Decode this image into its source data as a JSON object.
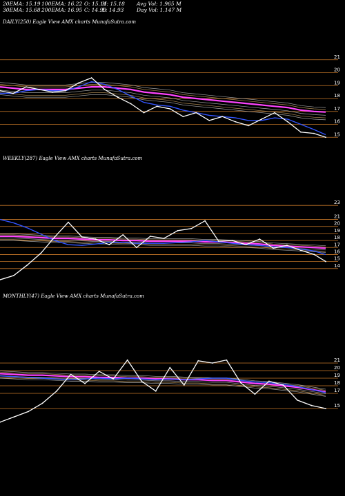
{
  "header": {
    "ema20": "20EMA: 15.19",
    "ema100": "100EMA: 16.22",
    "open": "O: 15.11",
    "high": "H: 15.18",
    "avgvol": "Avg Vol: 1.965 M",
    "ema30": "30EMA: 15.68",
    "ema200": "200EMA: 16.95",
    "close": "C: 14.99",
    "low": "L: 14.93",
    "dayvol": "Day Vol: 1.147 M"
  },
  "colors": {
    "price": "#ffffff",
    "ema_short": "#3355ff",
    "ema_long": "#ff44ff",
    "ma_gold": "#c8a060",
    "ma_grey": "#bbbbbb",
    "grid": "#c87828"
  },
  "chart_data": [
    {
      "type": "line",
      "title": "DAILY(250) Eagle  View  AMX  charts MunafaSutra.com",
      "ylim": [
        14,
        22
      ],
      "yticks": [
        "15",
        "16",
        "17",
        "18",
        "19",
        "20",
        "21"
      ],
      "x": [
        0,
        10,
        20,
        30,
        40,
        50,
        60,
        70,
        80,
        90,
        100,
        110,
        120,
        130,
        140,
        150,
        160,
        170,
        180,
        190,
        200,
        210,
        220,
        230,
        240,
        249
      ],
      "series": [
        {
          "role": "price",
          "values": [
            18.6,
            18.4,
            18.9,
            18.7,
            18.5,
            18.6,
            19.2,
            19.6,
            18.7,
            18.1,
            17.6,
            16.9,
            17.4,
            17.2,
            16.6,
            16.9,
            16.3,
            16.6,
            16.2,
            15.9,
            16.4,
            16.9,
            16.2,
            15.4,
            15.3,
            15.0
          ]
        },
        {
          "role": "ema_short",
          "values": [
            18.4,
            18.4,
            18.6,
            18.7,
            18.6,
            18.6,
            18.9,
            19.3,
            19.1,
            18.7,
            18.2,
            17.7,
            17.5,
            17.4,
            17.1,
            16.9,
            16.7,
            16.6,
            16.5,
            16.3,
            16.3,
            16.5,
            16.4,
            16.0,
            15.6,
            15.2
          ]
        },
        {
          "role": "ema_long",
          "values": [
            18.9,
            18.8,
            18.7,
            18.7,
            18.7,
            18.7,
            18.8,
            18.9,
            18.9,
            18.8,
            18.7,
            18.5,
            18.4,
            18.3,
            18.1,
            18.0,
            17.9,
            17.8,
            17.7,
            17.6,
            17.5,
            17.4,
            17.3,
            17.1,
            17.0,
            16.95
          ]
        }
      ]
    },
    {
      "type": "line",
      "title": "WEEKLY(287) Eagle  View  AMX  charts MunafaSutra.com",
      "ylim": [
        13,
        24
      ],
      "yticks": [
        "14",
        "15",
        "16",
        "17",
        "18",
        "19",
        "20",
        "21",
        "23"
      ],
      "x": [
        0,
        12,
        24,
        36,
        48,
        60,
        72,
        84,
        96,
        108,
        120,
        132,
        144,
        156,
        168,
        180,
        192,
        204,
        216,
        228,
        240,
        252,
        264,
        276,
        286
      ],
      "series": [
        {
          "role": "price",
          "values": [
            12.4,
            13.0,
            14.5,
            16.2,
            18.5,
            20.6,
            18.5,
            18.2,
            17.4,
            18.8,
            17.0,
            18.6,
            18.3,
            19.4,
            19.7,
            20.8,
            17.9,
            18.0,
            17.4,
            18.2,
            16.9,
            17.3,
            16.6,
            16.0,
            15.0
          ]
        },
        {
          "role": "ema_short",
          "values": [
            21.0,
            20.5,
            19.8,
            18.9,
            18.0,
            17.4,
            17.3,
            17.5,
            17.7,
            17.7,
            17.6,
            17.6,
            17.6,
            17.7,
            17.8,
            18.0,
            17.8,
            17.6,
            17.4,
            17.3,
            17.1,
            17.0,
            16.8,
            16.5,
            16.0
          ]
        },
        {
          "role": "ema_long",
          "values": [
            18.6,
            18.6,
            18.5,
            18.4,
            18.3,
            18.3,
            18.2,
            18.1,
            18.1,
            18.0,
            18.0,
            17.9,
            17.9,
            17.9,
            17.9,
            17.8,
            17.8,
            17.7,
            17.6,
            17.5,
            17.3,
            17.2,
            17.1,
            17.0,
            16.9
          ]
        }
      ]
    },
    {
      "type": "line",
      "title": "MONTHLY(47) Eagle  View  AMX  charts MunafaSutra.com",
      "ylim": [
        13,
        23
      ],
      "yticks": [
        "15",
        "17",
        "18",
        "19",
        "20",
        "21"
      ],
      "x": [
        0,
        2,
        4,
        6,
        8,
        10,
        12,
        14,
        16,
        18,
        20,
        22,
        24,
        26,
        28,
        30,
        32,
        34,
        36,
        38,
        40,
        42,
        44,
        46
      ],
      "series": [
        {
          "role": "price",
          "values": [
            13.2,
            13.9,
            14.6,
            15.7,
            17.3,
            19.5,
            18.3,
            19.9,
            18.9,
            21.4,
            18.6,
            17.3,
            20.4,
            18.1,
            21.3,
            21.0,
            21.4,
            18.4,
            16.9,
            18.6,
            18.1,
            16.1,
            15.4,
            15.0
          ]
        },
        {
          "role": "ema_short",
          "values": [
            19.3,
            19.2,
            19.1,
            19.0,
            18.9,
            18.8,
            18.9,
            19.0,
            18.9,
            19.0,
            18.9,
            18.8,
            18.9,
            18.8,
            18.9,
            19.0,
            19.0,
            18.7,
            18.5,
            18.4,
            18.2,
            17.9,
            17.5,
            17.1
          ]
        },
        {
          "role": "ema_long",
          "values": [
            19.6,
            19.5,
            19.4,
            19.4,
            19.3,
            19.2,
            19.2,
            19.1,
            19.1,
            19.0,
            19.0,
            18.9,
            18.9,
            18.8,
            18.8,
            18.7,
            18.7,
            18.5,
            18.3,
            18.2,
            18.0,
            17.8,
            17.5,
            17.2
          ]
        }
      ]
    }
  ]
}
